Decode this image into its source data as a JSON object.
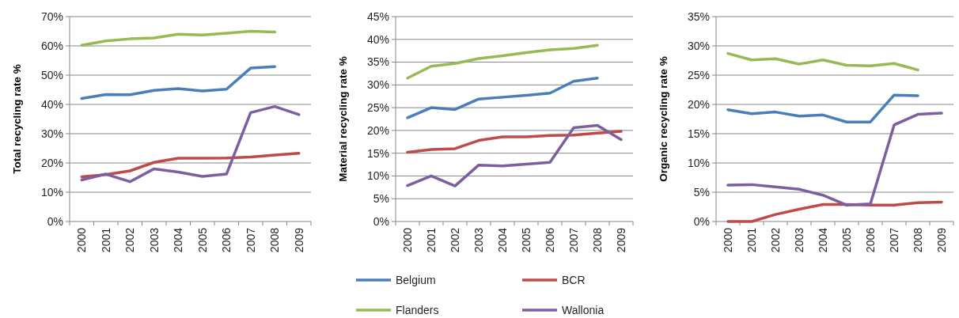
{
  "chart_data": [
    {
      "type": "line",
      "ylabel": "Total recycling rate %",
      "categories": [
        "2000",
        "2001",
        "2002",
        "2003",
        "2004",
        "2005",
        "2006",
        "2007",
        "2008",
        "2009"
      ],
      "ylim": [
        0,
        70
      ],
      "yticks": [
        {
          "value": 0,
          "label": "0%"
        },
        {
          "value": 10,
          "label": "10%"
        },
        {
          "value": 20,
          "label": "20%"
        },
        {
          "value": 30,
          "label": "30%"
        },
        {
          "value": 40,
          "label": "40%"
        },
        {
          "value": 50,
          "label": "50%"
        },
        {
          "value": 60,
          "label": "60%"
        },
        {
          "value": 70,
          "label": "70%"
        }
      ],
      "grid": "y",
      "legend": false,
      "series": [
        {
          "color": "#4a7ebb",
          "values": [
            42,
            43.4,
            43.3,
            44.8,
            45.4,
            44.6,
            45.2,
            52.4,
            52.9,
            null
          ]
        },
        {
          "color": "#be4b48",
          "values": [
            15.3,
            16.0,
            17.3,
            20.2,
            21.6,
            21.6,
            21.7,
            22.0,
            22.7,
            23.3
          ]
        },
        {
          "color": "#98b954",
          "values": [
            60.2,
            61.7,
            62.4,
            62.7,
            64.0,
            63.7,
            64.3,
            65.0,
            64.7,
            null
          ]
        },
        {
          "color": "#7d5fa0",
          "values": [
            14.2,
            16.2,
            13.6,
            18.0,
            16.9,
            15.4,
            16.2,
            37.2,
            39.3,
            36.5
          ]
        }
      ]
    },
    {
      "type": "line",
      "ylabel": "Material recycling rate %",
      "categories": [
        "2000",
        "2001",
        "2002",
        "2003",
        "2004",
        "2005",
        "2006",
        "2007",
        "2008",
        "2009"
      ],
      "ylim": [
        0,
        45
      ],
      "yticks": [
        {
          "value": 0,
          "label": "0%"
        },
        {
          "value": 5,
          "label": "5%"
        },
        {
          "value": 10,
          "label": "10%"
        },
        {
          "value": 15,
          "label": "15%"
        },
        {
          "value": 20,
          "label": "20%"
        },
        {
          "value": 25,
          "label": "25%"
        },
        {
          "value": 30,
          "label": "30%"
        },
        {
          "value": 35,
          "label": "35%"
        },
        {
          "value": 40,
          "label": "40%"
        },
        {
          "value": 45,
          "label": "45%"
        }
      ],
      "grid": "y",
      "legend": "bottom",
      "series": [
        {
          "name": "Belgium",
          "color": "#4a7ebb",
          "values": [
            22.8,
            25.0,
            24.6,
            26.9,
            27.3,
            27.7,
            28.2,
            30.8,
            31.5,
            null
          ]
        },
        {
          "name": "BCR",
          "color": "#be4b48",
          "values": [
            15.2,
            15.8,
            16.0,
            17.8,
            18.6,
            18.6,
            18.9,
            19.0,
            19.4,
            19.8
          ]
        },
        {
          "name": "Flanders",
          "color": "#98b954",
          "values": [
            31.5,
            34.1,
            34.7,
            35.8,
            36.4,
            37.1,
            37.7,
            38.0,
            38.7,
            null
          ]
        },
        {
          "name": "Wallonia",
          "color": "#7d5fa0",
          "values": [
            7.9,
            10.0,
            7.8,
            12.4,
            12.2,
            12.6,
            13.0,
            20.6,
            21.1,
            18.0
          ]
        }
      ]
    },
    {
      "type": "line",
      "ylabel": "Organic recycling rate %",
      "categories": [
        "2000",
        "2001",
        "2002",
        "2003",
        "2004",
        "2005",
        "2006",
        "2007",
        "2008",
        "2009"
      ],
      "ylim": [
        0,
        35
      ],
      "yticks": [
        {
          "value": 0,
          "label": "0%"
        },
        {
          "value": 5,
          "label": "5%"
        },
        {
          "value": 10,
          "label": "10%"
        },
        {
          "value": 15,
          "label": "15%"
        },
        {
          "value": 20,
          "label": "20%"
        },
        {
          "value": 25,
          "label": "25%"
        },
        {
          "value": 30,
          "label": "30%"
        },
        {
          "value": 35,
          "label": "35%"
        }
      ],
      "grid": "y",
      "legend": false,
      "series": [
        {
          "color": "#4a7ebb",
          "values": [
            19.1,
            18.4,
            18.7,
            18.0,
            18.2,
            17.0,
            17.0,
            21.6,
            21.5,
            null
          ]
        },
        {
          "color": "#be4b48",
          "values": [
            0,
            0,
            1.2,
            2.1,
            2.9,
            2.9,
            2.8,
            2.8,
            3.2,
            3.3
          ]
        },
        {
          "color": "#98b954",
          "values": [
            28.7,
            27.6,
            27.8,
            26.9,
            27.6,
            26.7,
            26.6,
            27.0,
            25.9,
            null
          ]
        },
        {
          "color": "#7d5fa0",
          "values": [
            6.2,
            6.3,
            5.9,
            5.5,
            4.5,
            2.8,
            3.0,
            16.5,
            18.3,
            18.5
          ]
        }
      ]
    }
  ]
}
